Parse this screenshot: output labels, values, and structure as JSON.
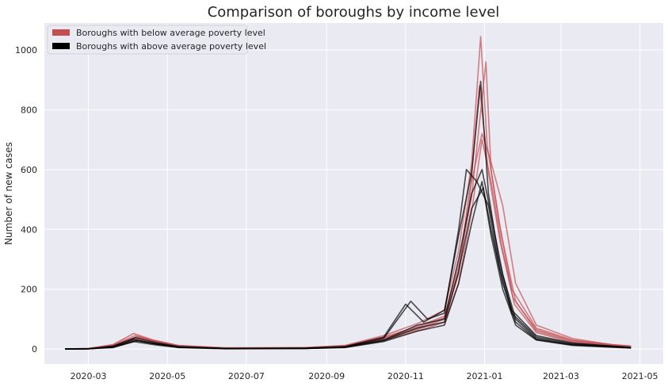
{
  "chart_data": {
    "type": "line",
    "title": "Comparison of boroughs by income level",
    "xlabel": "",
    "ylabel": "Number of new cases",
    "xlim": [
      "2020-01-27",
      "2021-05-19"
    ],
    "ylim": [
      -50,
      1090
    ],
    "x_ticks": [
      "2020-03",
      "2020-05",
      "2020-07",
      "2020-09",
      "2020-11",
      "2021-01",
      "2021-03",
      "2021-05"
    ],
    "y_ticks": [
      0,
      200,
      400,
      600,
      800,
      1000
    ],
    "grid": true,
    "legend_position": "top-left",
    "series_groups": [
      {
        "name": "Boroughs with below average poverty level",
        "color": "#c44e52",
        "opacity": 0.7,
        "series": [
          {
            "points": [
              [
                "2020-02-12",
                0
              ],
              [
                "2020-03-01",
                2
              ],
              [
                "2020-03-20",
                15
              ],
              [
                "2020-04-05",
                52
              ],
              [
                "2020-04-20",
                30
              ],
              [
                "2020-05-10",
                12
              ],
              [
                "2020-06-15",
                4
              ],
              [
                "2020-08-15",
                5
              ],
              [
                "2020-09-15",
                12
              ],
              [
                "2020-10-15",
                45
              ],
              [
                "2020-11-10",
                85
              ],
              [
                "2020-12-01",
                130
              ],
              [
                "2020-12-12",
                330
              ],
              [
                "2020-12-22",
                620
              ],
              [
                "2020-12-29",
                1045
              ],
              [
                "2021-01-03",
                680
              ],
              [
                "2021-01-12",
                430
              ],
              [
                "2021-01-22",
                200
              ],
              [
                "2021-02-10",
                70
              ],
              [
                "2021-03-10",
                30
              ],
              [
                "2021-04-10",
                15
              ],
              [
                "2021-04-24",
                10
              ]
            ]
          },
          {
            "points": [
              [
                "2020-02-12",
                0
              ],
              [
                "2020-03-01",
                1
              ],
              [
                "2020-03-20",
                12
              ],
              [
                "2020-04-08",
                42
              ],
              [
                "2020-04-22",
                25
              ],
              [
                "2020-05-10",
                10
              ],
              [
                "2020-06-15",
                3
              ],
              [
                "2020-08-15",
                4
              ],
              [
                "2020-09-15",
                10
              ],
              [
                "2020-10-15",
                40
              ],
              [
                "2020-11-10",
                75
              ],
              [
                "2020-12-01",
                110
              ],
              [
                "2020-12-12",
                280
              ],
              [
                "2020-12-22",
                510
              ],
              [
                "2021-01-02",
                960
              ],
              [
                "2021-01-06",
                600
              ],
              [
                "2021-01-14",
                380
              ],
              [
                "2021-01-25",
                160
              ],
              [
                "2021-02-10",
                60
              ],
              [
                "2021-03-10",
                25
              ],
              [
                "2021-04-10",
                12
              ],
              [
                "2021-04-24",
                8
              ]
            ]
          },
          {
            "points": [
              [
                "2020-02-12",
                0
              ],
              [
                "2020-03-01",
                1
              ],
              [
                "2020-03-20",
                8
              ],
              [
                "2020-04-05",
                35
              ],
              [
                "2020-04-22",
                20
              ],
              [
                "2020-05-10",
                8
              ],
              [
                "2020-06-15",
                2
              ],
              [
                "2020-08-15",
                3
              ],
              [
                "2020-09-15",
                8
              ],
              [
                "2020-10-15",
                35
              ],
              [
                "2020-11-10",
                65
              ],
              [
                "2020-12-01",
                100
              ],
              [
                "2020-12-12",
                250
              ],
              [
                "2020-12-20",
                520
              ],
              [
                "2020-12-30",
                720
              ],
              [
                "2021-01-05",
                640
              ],
              [
                "2021-01-15",
                480
              ],
              [
                "2021-01-25",
                220
              ],
              [
                "2021-02-10",
                80
              ],
              [
                "2021-03-10",
                35
              ],
              [
                "2021-04-10",
                14
              ],
              [
                "2021-04-24",
                10
              ]
            ]
          },
          {
            "points": [
              [
                "2020-02-12",
                0
              ],
              [
                "2020-03-01",
                1
              ],
              [
                "2020-03-20",
                10
              ],
              [
                "2020-04-08",
                38
              ],
              [
                "2020-04-25",
                22
              ],
              [
                "2020-05-10",
                9
              ],
              [
                "2020-06-15",
                3
              ],
              [
                "2020-08-15",
                3
              ],
              [
                "2020-09-15",
                9
              ],
              [
                "2020-10-15",
                30
              ],
              [
                "2020-11-10",
                60
              ],
              [
                "2020-12-01",
                90
              ],
              [
                "2020-12-12",
                220
              ],
              [
                "2020-12-22",
                460
              ],
              [
                "2020-12-30",
                700
              ],
              [
                "2021-01-06",
                560
              ],
              [
                "2021-01-14",
                350
              ],
              [
                "2021-01-24",
                150
              ],
              [
                "2021-02-10",
                55
              ],
              [
                "2021-03-10",
                22
              ],
              [
                "2021-04-10",
                12
              ],
              [
                "2021-04-24",
                7
              ]
            ]
          },
          {
            "points": [
              [
                "2020-02-12",
                0
              ],
              [
                "2020-03-01",
                2
              ],
              [
                "2020-03-20",
                14
              ],
              [
                "2020-04-06",
                45
              ],
              [
                "2020-04-22",
                28
              ],
              [
                "2020-05-10",
                11
              ],
              [
                "2020-06-15",
                3
              ],
              [
                "2020-08-15",
                4
              ],
              [
                "2020-09-15",
                11
              ],
              [
                "2020-10-15",
                38
              ],
              [
                "2020-11-10",
                70
              ],
              [
                "2020-12-01",
                105
              ],
              [
                "2020-12-12",
                260
              ],
              [
                "2020-12-20",
                480
              ],
              [
                "2020-12-28",
                880
              ],
              [
                "2021-01-04",
                590
              ],
              [
                "2021-01-13",
                360
              ],
              [
                "2021-01-23",
                170
              ],
              [
                "2021-02-10",
                65
              ],
              [
                "2021-03-10",
                28
              ],
              [
                "2021-04-10",
                14
              ],
              [
                "2021-04-24",
                9
              ]
            ]
          }
        ]
      },
      {
        "name": "Boroughs with above average poverty level",
        "color": "#000000",
        "opacity": 0.7,
        "series": [
          {
            "points": [
              [
                "2020-02-12",
                0
              ],
              [
                "2020-03-01",
                1
              ],
              [
                "2020-03-20",
                10
              ],
              [
                "2020-04-06",
                38
              ],
              [
                "2020-04-22",
                22
              ],
              [
                "2020-05-10",
                8
              ],
              [
                "2020-06-15",
                2
              ],
              [
                "2020-08-15",
                3
              ],
              [
                "2020-09-15",
                8
              ],
              [
                "2020-10-15",
                40
              ],
              [
                "2020-11-01",
                150
              ],
              [
                "2020-11-15",
                90
              ],
              [
                "2020-12-01",
                130
              ],
              [
                "2020-12-12",
                380
              ],
              [
                "2020-12-22",
                590
              ],
              [
                "2020-12-29",
                895
              ],
              [
                "2021-01-04",
                520
              ],
              [
                "2021-01-12",
                300
              ],
              [
                "2021-01-22",
                130
              ],
              [
                "2021-02-10",
                45
              ],
              [
                "2021-03-10",
                20
              ],
              [
                "2021-04-10",
                10
              ],
              [
                "2021-04-24",
                5
              ]
            ]
          },
          {
            "points": [
              [
                "2020-02-12",
                0
              ],
              [
                "2020-03-01",
                1
              ],
              [
                "2020-03-20",
                8
              ],
              [
                "2020-04-05",
                32
              ],
              [
                "2020-04-22",
                18
              ],
              [
                "2020-05-10",
                7
              ],
              [
                "2020-06-15",
                2
              ],
              [
                "2020-08-15",
                3
              ],
              [
                "2020-09-15",
                7
              ],
              [
                "2020-10-15",
                35
              ],
              [
                "2020-11-05",
                160
              ],
              [
                "2020-11-18",
                100
              ],
              [
                "2020-12-01",
                120
              ],
              [
                "2020-12-12",
                400
              ],
              [
                "2020-12-18",
                600
              ],
              [
                "2020-12-26",
                560
              ],
              [
                "2021-01-04",
                480
              ],
              [
                "2021-01-12",
                280
              ],
              [
                "2021-01-22",
                120
              ],
              [
                "2021-02-10",
                40
              ],
              [
                "2021-03-10",
                18
              ],
              [
                "2021-04-10",
                9
              ],
              [
                "2021-04-24",
                5
              ]
            ]
          },
          {
            "points": [
              [
                "2020-02-12",
                0
              ],
              [
                "2020-03-01",
                1
              ],
              [
                "2020-03-20",
                6
              ],
              [
                "2020-04-08",
                28
              ],
              [
                "2020-04-25",
                15
              ],
              [
                "2020-05-10",
                6
              ],
              [
                "2020-06-15",
                2
              ],
              [
                "2020-08-15",
                2
              ],
              [
                "2020-09-15",
                6
              ],
              [
                "2020-10-15",
                30
              ],
              [
                "2020-11-10",
                80
              ],
              [
                "2020-12-01",
                100
              ],
              [
                "2020-12-12",
                300
              ],
              [
                "2020-12-22",
                520
              ],
              [
                "2020-12-30",
                600
              ],
              [
                "2021-01-06",
                450
              ],
              [
                "2021-01-15",
                250
              ],
              [
                "2021-01-25",
                100
              ],
              [
                "2021-02-10",
                35
              ],
              [
                "2021-03-10",
                15
              ],
              [
                "2021-04-10",
                8
              ],
              [
                "2021-04-24",
                4
              ]
            ]
          },
          {
            "points": [
              [
                "2020-02-12",
                0
              ],
              [
                "2020-03-01",
                1
              ],
              [
                "2020-03-20",
                5
              ],
              [
                "2020-04-05",
                25
              ],
              [
                "2020-04-22",
                14
              ],
              [
                "2020-05-10",
                5
              ],
              [
                "2020-06-15",
                1
              ],
              [
                "2020-08-15",
                2
              ],
              [
                "2020-09-15",
                5
              ],
              [
                "2020-10-15",
                25
              ],
              [
                "2020-11-10",
                60
              ],
              [
                "2020-12-01",
                80
              ],
              [
                "2020-12-12",
                220
              ],
              [
                "2020-12-22",
                420
              ],
              [
                "2020-12-30",
                560
              ],
              [
                "2021-01-06",
                380
              ],
              [
                "2021-01-15",
                200
              ],
              [
                "2021-01-25",
                80
              ],
              [
                "2021-02-10",
                30
              ],
              [
                "2021-03-10",
                12
              ],
              [
                "2021-04-10",
                6
              ],
              [
                "2021-04-24",
                3
              ]
            ]
          },
          {
            "points": [
              [
                "2020-02-12",
                0
              ],
              [
                "2020-03-01",
                1
              ],
              [
                "2020-03-20",
                7
              ],
              [
                "2020-04-06",
                30
              ],
              [
                "2020-04-22",
                17
              ],
              [
                "2020-05-10",
                6
              ],
              [
                "2020-06-15",
                2
              ],
              [
                "2020-08-15",
                2
              ],
              [
                "2020-09-15",
                6
              ],
              [
                "2020-10-15",
                28
              ],
              [
                "2020-11-10",
                70
              ],
              [
                "2020-12-01",
                90
              ],
              [
                "2020-12-12",
                260
              ],
              [
                "2020-12-22",
                470
              ],
              [
                "2020-12-31",
                540
              ],
              [
                "2021-01-06",
                400
              ],
              [
                "2021-01-15",
                220
              ],
              [
                "2021-01-25",
                90
              ],
              [
                "2021-02-10",
                32
              ],
              [
                "2021-03-10",
                14
              ],
              [
                "2021-04-10",
                7
              ],
              [
                "2021-04-24",
                4
              ]
            ]
          }
        ]
      }
    ]
  },
  "colors": {
    "plot_background": "#eaeaf2",
    "grid": "#ffffff",
    "below_average": "#c44e52",
    "above_average": "#000000"
  }
}
